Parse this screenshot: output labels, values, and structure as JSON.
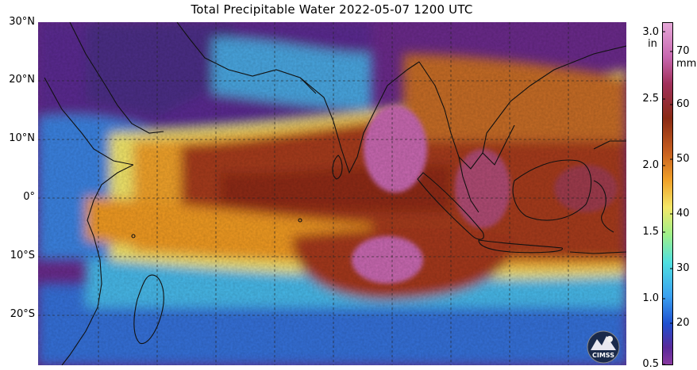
{
  "title": "Total Precipitable Water  2022-05-07 1200 UTC",
  "lat_labels": [
    "30°N",
    "20°N",
    "10°N",
    "0°",
    "10°S",
    "20°S"
  ],
  "colorbar": {
    "inch_unit": "in",
    "mm_unit": "mm",
    "inch_ticks": [
      "3.0",
      "2.5",
      "2.0",
      "1.5",
      "1.0",
      "0.5"
    ],
    "mm_ticks": [
      "70",
      "60",
      "50",
      "40",
      "30",
      "20"
    ]
  },
  "logo_text": "CIMSS",
  "colors": {
    "very_moist": "#c868b0",
    "moist": "#9a3418",
    "moderate": "#e88a1c",
    "mid": "#f0e060",
    "dry_mid": "#60e0d0",
    "dry": "#3070e0",
    "very_dry": "#6a2a8a"
  }
}
